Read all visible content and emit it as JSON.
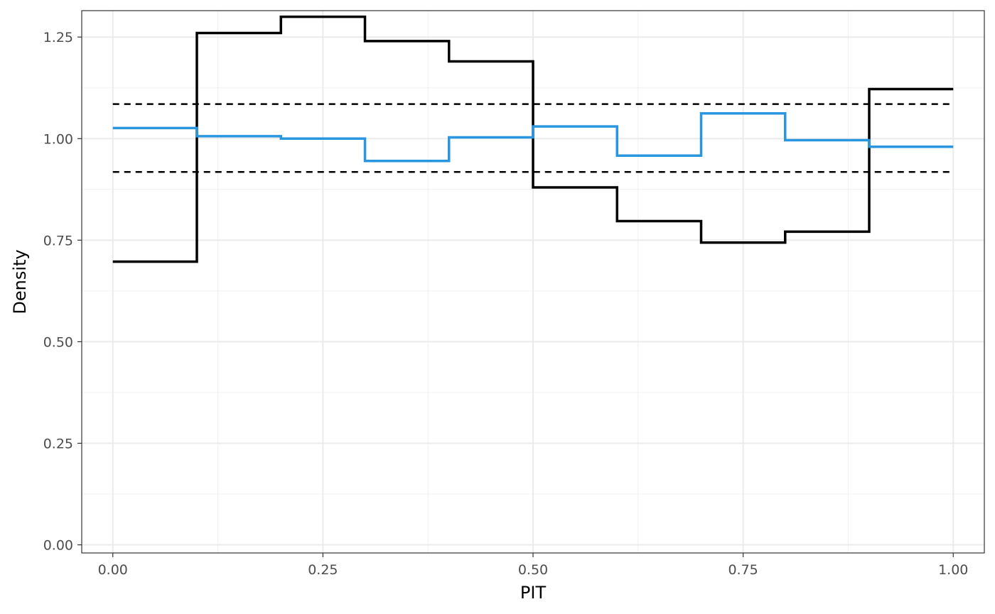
{
  "chart_data": {
    "type": "line",
    "title": "",
    "xlabel": "PIT",
    "ylabel": "Density",
    "xlim": [
      -0.037,
      1.037
    ],
    "ylim": [
      -0.02,
      1.315
    ],
    "x_ticks": [
      0,
      0.25,
      0.5,
      0.75,
      1
    ],
    "x_tick_labels": [
      "0.00",
      "0.25",
      "0.50",
      "0.75",
      "1.00"
    ],
    "y_ticks": [
      0,
      0.25,
      0.5,
      0.75,
      1,
      1.25
    ],
    "y_tick_labels": [
      "0.00",
      "0.25",
      "0.50",
      "0.75",
      "1.00",
      "1.25"
    ],
    "grid": true,
    "legend": "none",
    "bin_edges": [
      0,
      0.1,
      0.2,
      0.3,
      0.4,
      0.5,
      0.6,
      0.7,
      0.8,
      0.9,
      1.0
    ],
    "series": [
      {
        "style": "step",
        "color": "#000000",
        "values": [
          0.697,
          1.26,
          1.3,
          1.24,
          1.19,
          0.88,
          0.797,
          0.744,
          0.771,
          1.122
        ]
      },
      {
        "style": "step",
        "color": "#2b96e0",
        "values": [
          1.026,
          1.006,
          1.0,
          0.945,
          1.003,
          1.03,
          0.958,
          1.062,
          0.996,
          0.98
        ]
      }
    ],
    "reference_lines": [
      {
        "y": 1.085,
        "style": "dashed",
        "color": "#000000"
      },
      {
        "y": 0.918,
        "style": "dashed",
        "color": "#000000"
      }
    ]
  }
}
